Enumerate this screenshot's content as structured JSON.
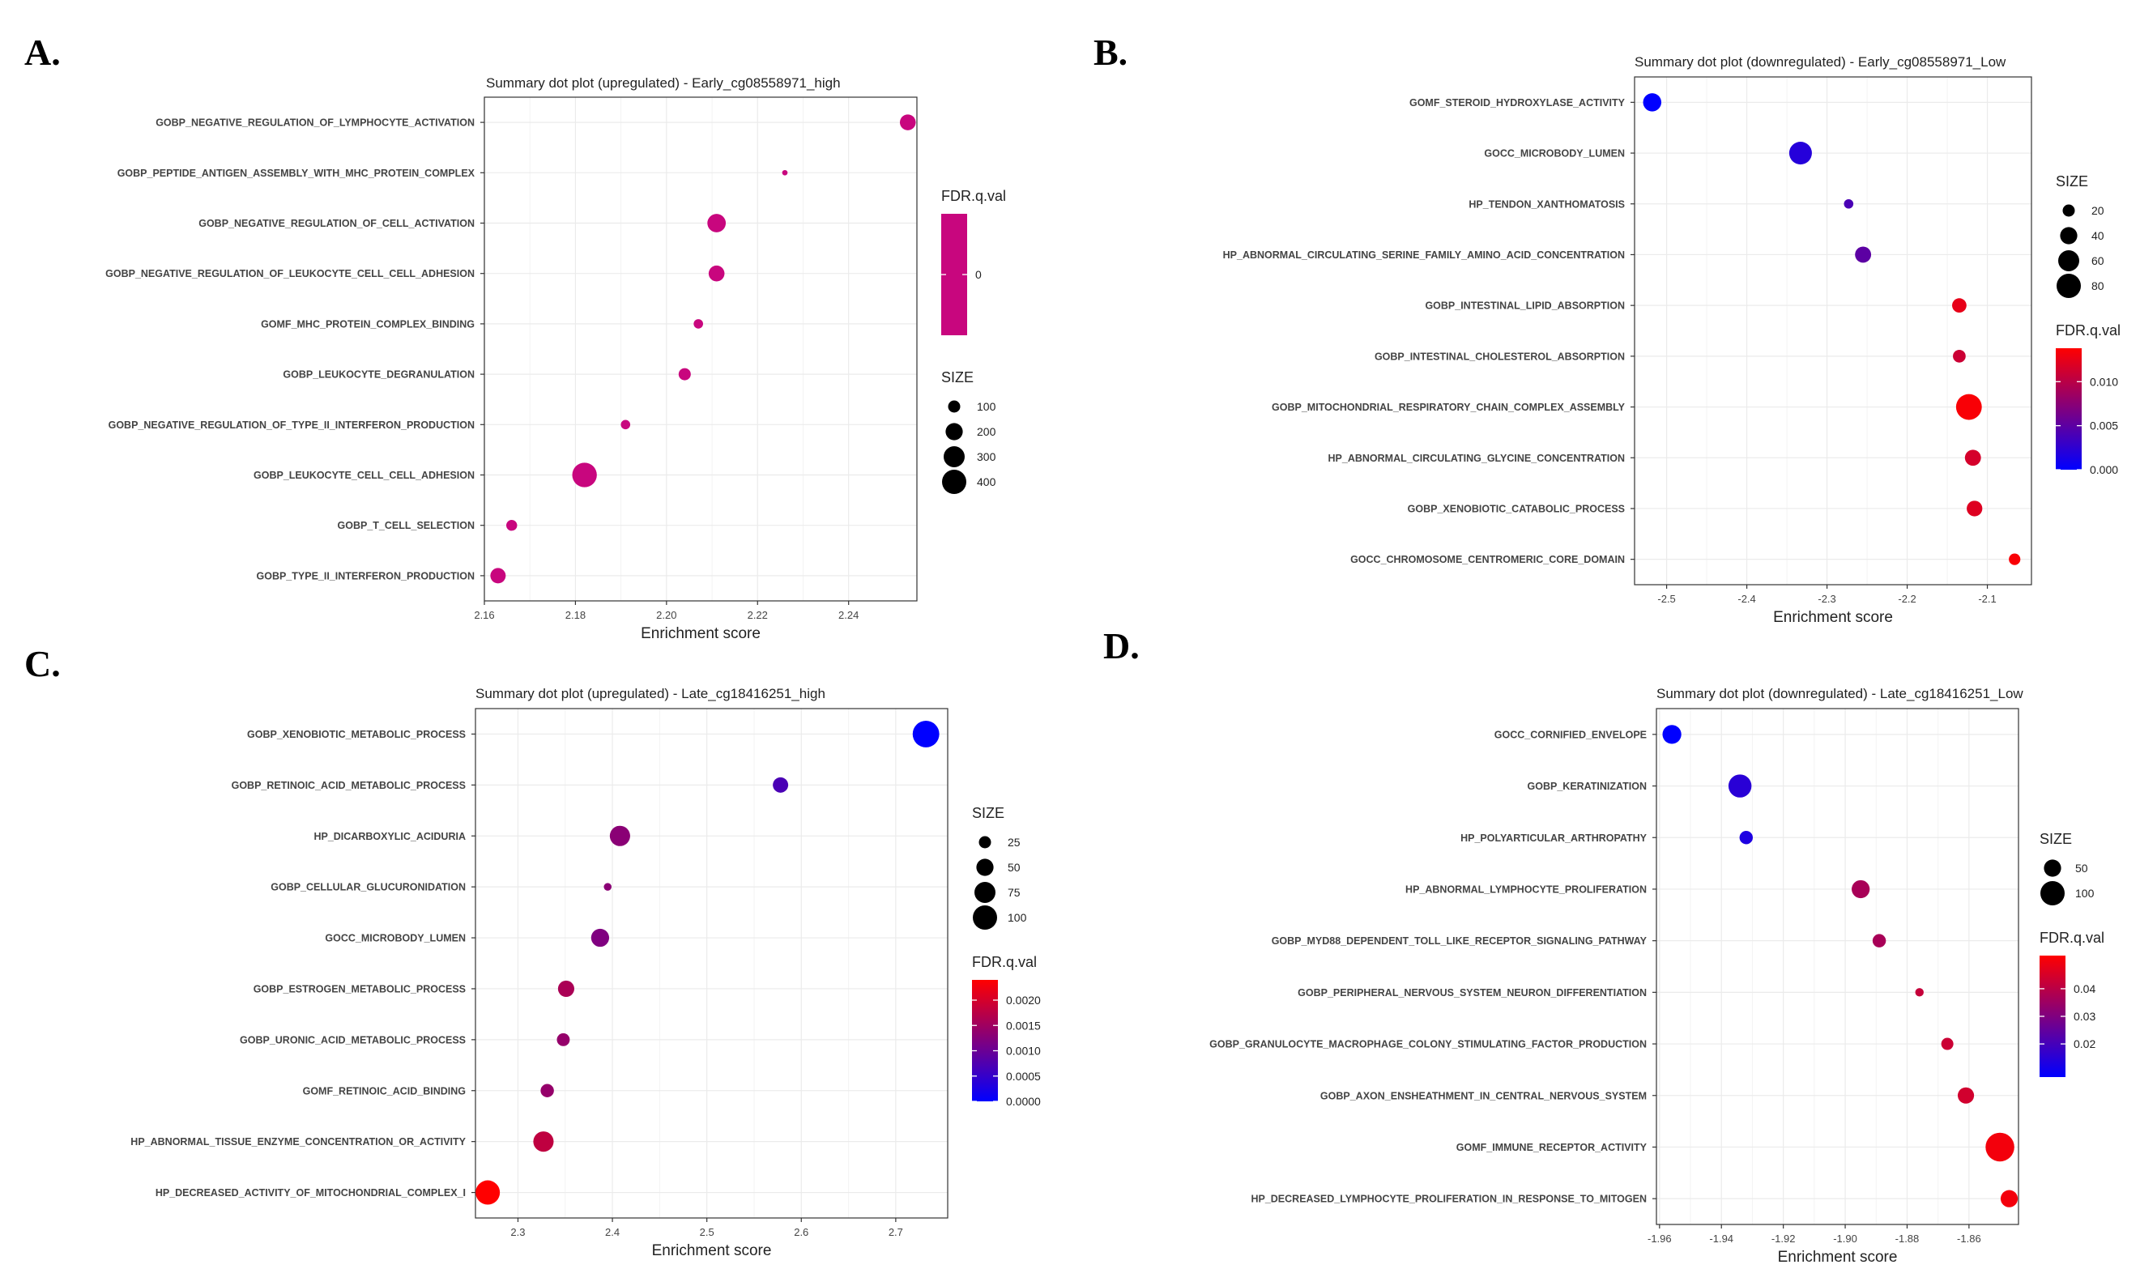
{
  "chart_data": [
    {
      "panel": "A.",
      "type": "scatter",
      "title": "Summary dot plot (upregulated) -  Early_cg08558971_high",
      "xlabel": "Enrichment score",
      "xlim": [
        2.16,
        2.255
      ],
      "xticks": [
        2.16,
        2.18,
        2.2,
        2.22,
        2.24
      ],
      "xtick_labels": [
        "2.16",
        "2.18",
        "2.20",
        "2.22",
        "2.24"
      ],
      "categories": [
        "GOBP_NEGATIVE_REGULATION_OF_LYMPHOCYTE_ACTIVATION",
        "GOBP_PEPTIDE_ANTIGEN_ASSEMBLY_WITH_MHC_PROTEIN_COMPLEX",
        "GOBP_NEGATIVE_REGULATION_OF_CELL_ACTIVATION",
        "GOBP_NEGATIVE_REGULATION_OF_LEUKOCYTE_CELL_CELL_ADHESION",
        "GOMF_MHC_PROTEIN_COMPLEX_BINDING",
        "GOBP_LEUKOCYTE_DEGRANULATION",
        "GOBP_NEGATIVE_REGULATION_OF_TYPE_II_INTERFERON_PRODUCTION",
        "GOBP_LEUKOCYTE_CELL_CELL_ADHESION",
        "GOBP_T_CELL_SELECTION",
        "GOBP_TYPE_II_INTERFERON_PRODUCTION"
      ],
      "x": [
        2.253,
        2.226,
        2.211,
        2.211,
        2.207,
        2.204,
        2.191,
        2.182,
        2.166,
        2.163
      ],
      "size": [
        170,
        20,
        230,
        170,
        60,
        100,
        60,
        410,
        80,
        160
      ],
      "fdr": [
        0,
        0,
        0,
        0,
        0,
        0,
        0,
        0,
        0,
        0
      ],
      "legend_order": [
        "color",
        "size"
      ],
      "color_legend": {
        "title": "FDR.q.val",
        "range": [
          0,
          0
        ],
        "ticks": [
          0
        ],
        "tick_labels": [
          "0"
        ],
        "colors": [
          "#c8067e"
        ]
      },
      "size_legend": {
        "title": "SIZE",
        "values": [
          100,
          200,
          300,
          400
        ],
        "labels": [
          "100",
          "200",
          "300",
          "400"
        ]
      }
    },
    {
      "panel": "B.",
      "type": "scatter",
      "title": "Summary dot plot (downregulated) -  Early_cg08558971_Low",
      "xlabel": "Enrichment score",
      "xlim": [
        -2.54,
        -2.045
      ],
      "xticks": [
        -2.5,
        -2.4,
        -2.3,
        -2.2,
        -2.1
      ],
      "xtick_labels": [
        "-2.5",
        "-2.4",
        "-2.3",
        "-2.2",
        "-2.1"
      ],
      "categories": [
        "GOMF_STEROID_HYDROXYLASE_ACTIVITY",
        "GOCC_MICROBODY_LUMEN",
        "HP_TENDON_XANTHOMATOSIS",
        "HP_ABNORMAL_CIRCULATING_SERINE_FAMILY_AMINO_ACID_CONCENTRATION",
        "GOBP_INTESTINAL_LIPID_ABSORPTION",
        "GOBP_INTESTINAL_CHOLESTEROL_ABSORPTION",
        "GOBP_MITOCHONDRIAL_RESPIRATORY_CHAIN_COMPLEX_ASSEMBLY",
        "HP_ABNORMAL_CIRCULATING_GLYCINE_CONCENTRATION",
        "GOBP_XENOBIOTIC_CATABOLIC_PROCESS",
        "GOCC_CHROMOSOME_CENTROMERIC_CORE_DOMAIN"
      ],
      "x": [
        -2.518,
        -2.333,
        -2.273,
        -2.255,
        -2.135,
        -2.135,
        -2.123,
        -2.118,
        -2.116,
        -2.066
      ],
      "size": [
        45,
        70,
        12,
        35,
        28,
        22,
        90,
        35,
        33,
        18
      ],
      "fdr": [
        0.0,
        0.002,
        0.004,
        0.005,
        0.0125,
        0.011,
        0.0135,
        0.0115,
        0.012,
        0.0135
      ],
      "legend_order": [
        "size",
        "color"
      ],
      "size_legend": {
        "title": "SIZE",
        "values": [
          20,
          40,
          60,
          80
        ],
        "labels": [
          "20",
          "40",
          "60",
          "80"
        ]
      },
      "color_legend": {
        "title": "FDR.q.val",
        "range": [
          0,
          0.0138
        ],
        "ticks": [
          0,
          0.005,
          0.01
        ],
        "tick_labels": [
          "0.000",
          "0.005",
          "0.010"
        ],
        "colors": [
          "#0000ff",
          "#ff0000"
        ]
      }
    },
    {
      "panel": "C.",
      "type": "scatter",
      "title": "Summary dot plot (upregulated) -  Late_cg18416251_high",
      "xlabel": "Enrichment score",
      "xlim": [
        2.255,
        2.755
      ],
      "xticks": [
        2.3,
        2.4,
        2.5,
        2.6,
        2.7
      ],
      "xtick_labels": [
        "2.3",
        "2.4",
        "2.5",
        "2.6",
        "2.7"
      ],
      "categories": [
        "GOBP_XENOBIOTIC_METABOLIC_PROCESS",
        "GOBP_RETINOIC_ACID_METABOLIC_PROCESS",
        "HP_DICARBOXYLIC_ACIDURIA",
        "GOBP_CELLULAR_GLUCURONIDATION",
        "GOCC_MICROBODY_LUMEN",
        "GOBP_ESTROGEN_METABOLIC_PROCESS",
        "GOBP_URONIC_ACID_METABOLIC_PROCESS",
        "GOMF_RETINOIC_ACID_BINDING",
        "HP_ABNORMAL_TISSUE_ENZYME_CONCENTRATION_OR_ACTIVITY",
        "HP_DECREASED_ACTIVITY_OF_MITOCHONDRIAL_COMPLEX_I"
      ],
      "x": [
        2.732,
        2.578,
        2.408,
        2.395,
        2.387,
        2.351,
        2.348,
        2.331,
        2.327,
        2.268
      ],
      "size": [
        120,
        40,
        70,
        10,
        55,
        45,
        28,
        30,
        70,
        100
      ],
      "fdr": [
        0.0,
        0.0007,
        0.0013,
        0.0013,
        0.0012,
        0.0016,
        0.0014,
        0.0014,
        0.0018,
        0.0024
      ],
      "legend_order": [
        "size",
        "color"
      ],
      "size_legend": {
        "title": "SIZE",
        "values": [
          25,
          50,
          75,
          100
        ],
        "labels": [
          "25",
          "50",
          "75",
          "100"
        ]
      },
      "color_legend": {
        "title": "FDR.q.val",
        "range": [
          0,
          0.0024
        ],
        "ticks": [
          0,
          0.0005,
          0.001,
          0.0015,
          0.002
        ],
        "tick_labels": [
          "0.0000",
          "0.0005",
          "0.0010",
          "0.0015",
          "0.0020"
        ],
        "colors": [
          "#0000ff",
          "#ff0000"
        ]
      }
    },
    {
      "panel": "D.",
      "type": "scatter",
      "title": "Summary dot plot (downregulated) -  Late_cg18416251_Low",
      "xlabel": "Enrichment score",
      "xlim": [
        -1.961,
        -1.844
      ],
      "xticks": [
        -1.96,
        -1.94,
        -1.92,
        -1.9,
        -1.88,
        -1.86
      ],
      "xtick_labels": [
        "-1.96",
        "-1.94",
        "-1.92",
        "-1.90",
        "-1.88",
        "-1.86"
      ],
      "categories": [
        "GOCC_CORNIFIED_ENVELOPE",
        "GOBP_KERATINIZATION",
        "HP_POLYARTICULAR_ARTHROPATHY",
        "HP_ABNORMAL_LYMPHOCYTE_PROLIFERATION",
        "GOBP_MYD88_DEPENDENT_TOLL_LIKE_RECEPTOR_SIGNALING_PATHWAY",
        "GOBP_PERIPHERAL_NERVOUS_SYSTEM_NEURON_DIFFERENTIATION",
        "GOBP_GRANULOCYTE_MACROPHAGE_COLONY_STIMULATING_FACTOR_PRODUCTION",
        "GOBP_AXON_ENSHEATHMENT_IN_CENTRAL_NERVOUS_SYSTEM",
        "GOMF_IMMUNE_RECEPTOR_ACTIVITY",
        "HP_DECREASED_LYMPHOCYTE_PROLIFERATION_IN_RESPONSE_TO_MITOGEN"
      ],
      "x": [
        -1.956,
        -1.934,
        -1.932,
        -1.895,
        -1.889,
        -1.876,
        -1.867,
        -1.861,
        -1.85,
        -1.847
      ],
      "size": [
        60,
        90,
        30,
        55,
        30,
        12,
        25,
        45,
        140,
        50
      ],
      "fdr": [
        0.005,
        0.015,
        0.013,
        0.037,
        0.037,
        0.042,
        0.043,
        0.044,
        0.05,
        0.05
      ],
      "legend_order": [
        "size",
        "color"
      ],
      "size_legend": {
        "title": "SIZE",
        "values": [
          50,
          100
        ],
        "labels": [
          "50",
          "100"
        ]
      },
      "color_legend": {
        "title": "FDR.q.val",
        "range": [
          0.008,
          0.052
        ],
        "ticks": [
          0.02,
          0.03,
          0.04
        ],
        "tick_labels": [
          "0.02",
          "0.03",
          "0.04"
        ],
        "colors": [
          "#0000ff",
          "#ff0000"
        ]
      }
    }
  ]
}
